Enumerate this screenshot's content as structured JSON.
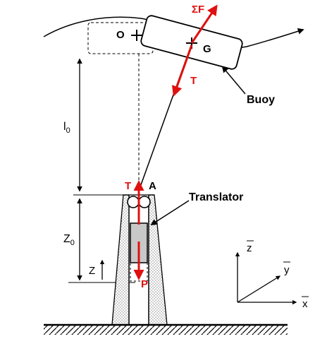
{
  "labels": {
    "force_sum": "ΣF",
    "origin": "O",
    "center_gravity": "G",
    "tension_top": "T",
    "buoy": "Buoy",
    "length": "l",
    "length_sub": "0",
    "tension_bottom": "T",
    "point_a": "A",
    "translator": "Translator",
    "z0": "Z",
    "z0_sub": "0",
    "z": "Z",
    "weight": "P",
    "axis_z": "z",
    "axis_y": "y",
    "axis_x": "x"
  },
  "colors": {
    "force": "#e01010",
    "line": "#000000",
    "translator_fill": "#c8c8c8",
    "stipple": "#555555"
  }
}
